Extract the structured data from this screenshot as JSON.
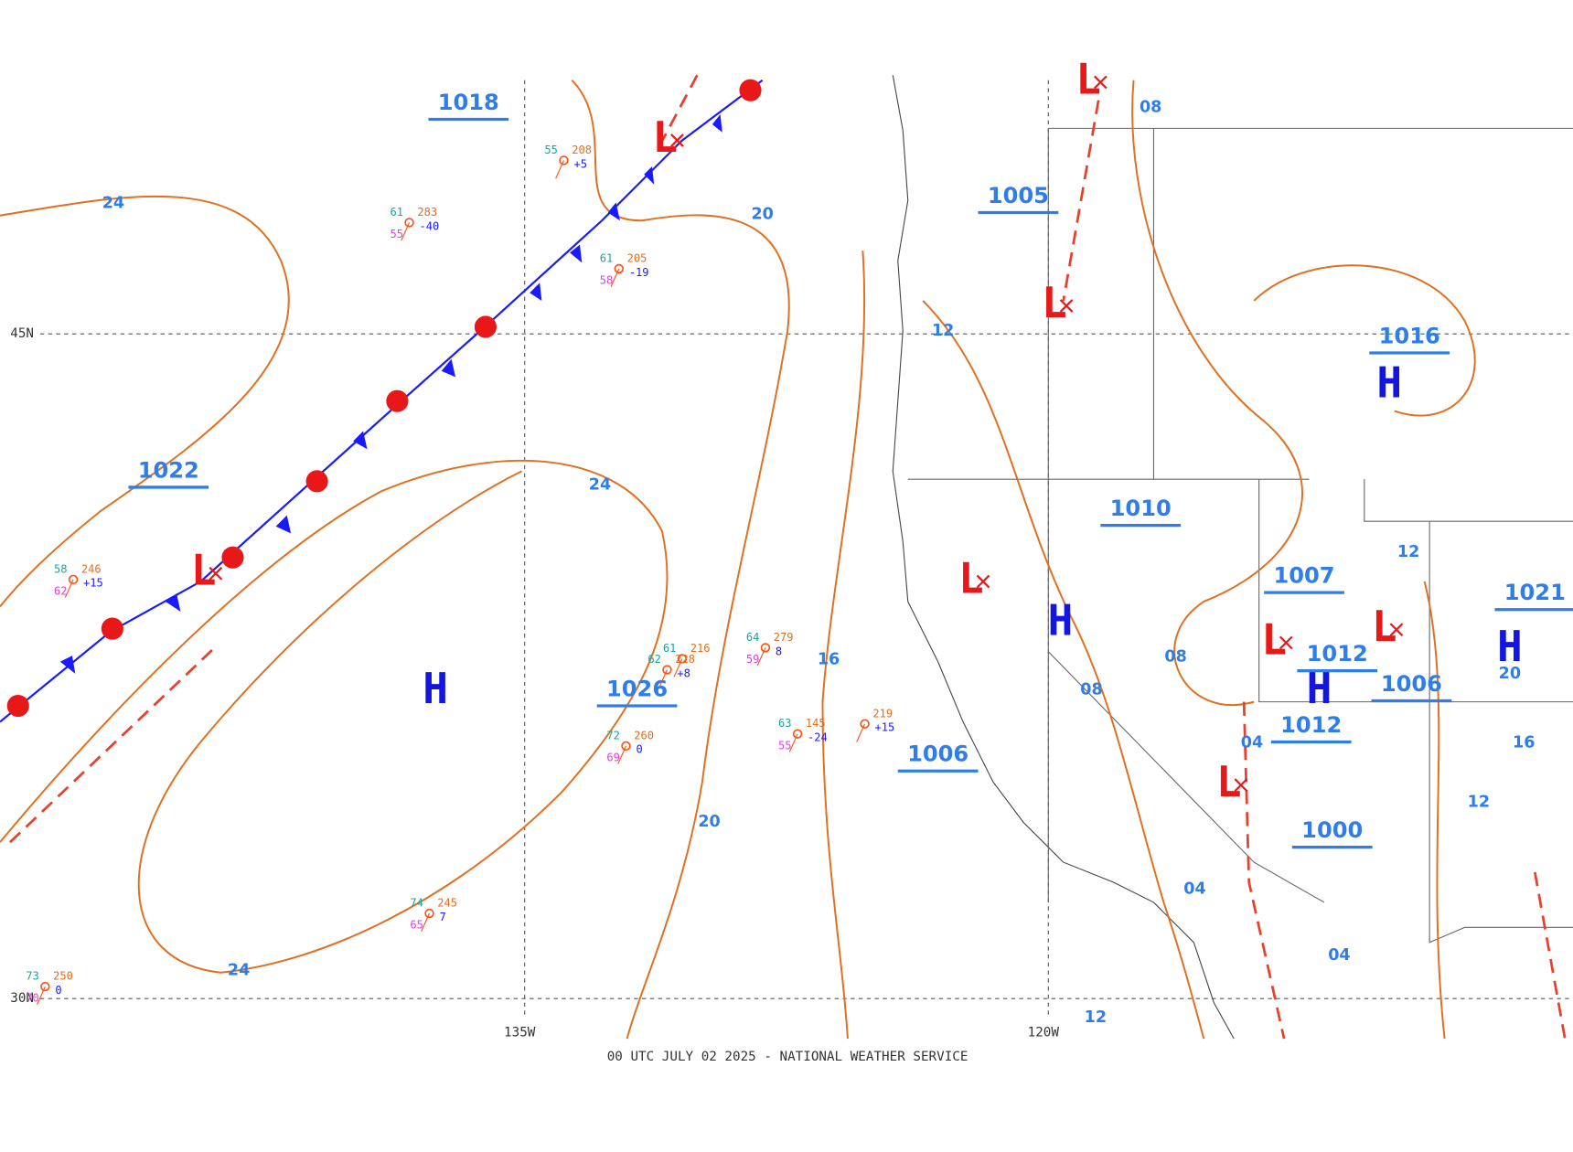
{
  "footer": "00 UTC JULY 02 2025 - NATIONAL WEATHER SERVICE",
  "grid_labels": {
    "lat": [
      "45N",
      "30N"
    ],
    "lon": [
      "135W",
      "120W"
    ]
  },
  "pressure_labels": [
    "1018",
    "1022",
    "1026",
    "1005",
    "1006",
    "1010",
    "1007",
    "1016",
    "1012",
    "1012",
    "1006",
    "1000",
    "1021"
  ],
  "highs": [
    "H",
    "H",
    "H",
    "H",
    "H"
  ],
  "lows": [
    "L",
    "L",
    "L",
    "L",
    "L",
    "L",
    "L",
    "L"
  ],
  "isobar_labels": [
    "24",
    "24",
    "24",
    "20",
    "20",
    "16",
    "12",
    "12",
    "12",
    "12",
    "08",
    "08",
    "08",
    "04",
    "04",
    "04",
    "16",
    "20"
  ],
  "stations": [
    {
      "t": "61",
      "p": "283",
      "tend": "-40",
      "d": "55"
    },
    {
      "t": "55",
      "p": "208",
      "tend": "+5"
    },
    {
      "t": "61",
      "p": "205",
      "tend": "-19",
      "d": "58"
    },
    {
      "t": "58",
      "p": "246",
      "tend": "+15",
      "d": "62"
    },
    {
      "t": "64",
      "p": "279",
      "tend": "8",
      "d": "59"
    },
    {
      "t": "74",
      "p": "245",
      "tend": "7",
      "d": "65"
    },
    {
      "t": "72",
      "p": "260",
      "tend": "0",
      "d": "69"
    },
    {
      "t": "73",
      "p": "250",
      "tend": "0",
      "d": "70"
    },
    {
      "t": "61",
      "p": "216"
    },
    {
      "t": "62",
      "p": "228",
      "tend": "+8"
    },
    {
      "t": "63",
      "p": "145",
      "tend": "-24",
      "d": "55"
    },
    {
      "p": "219",
      "tend": "+15"
    }
  ]
}
